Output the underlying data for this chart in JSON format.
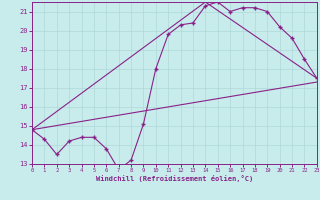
{
  "title": "",
  "xlabel": "Windchill (Refroidissement éolien,°C)",
  "ylabel": "",
  "bg_color": "#c8ecec",
  "grid_color": "#b0d8d8",
  "line_color": "#882288",
  "marker_color": "#882288",
  "xmin": 0,
  "xmax": 23,
  "ymin": 13,
  "ymax": 21.5,
  "yticks": [
    13,
    14,
    15,
    16,
    17,
    18,
    19,
    20,
    21
  ],
  "xticks": [
    0,
    1,
    2,
    3,
    4,
    5,
    6,
    7,
    8,
    9,
    10,
    11,
    12,
    13,
    14,
    15,
    16,
    17,
    18,
    19,
    20,
    21,
    22,
    23
  ],
  "line1_x": [
    0,
    1,
    2,
    3,
    4,
    5,
    6,
    7,
    8,
    9,
    10,
    11,
    12,
    13,
    14,
    15,
    16,
    17,
    18,
    19,
    20,
    21,
    22,
    23
  ],
  "line1_y": [
    14.8,
    14.3,
    13.5,
    14.2,
    14.4,
    14.4,
    13.8,
    12.7,
    13.2,
    15.1,
    18.0,
    19.8,
    20.3,
    20.4,
    21.3,
    21.5,
    21.0,
    21.2,
    21.2,
    21.0,
    20.2,
    19.6,
    18.5,
    17.5
  ],
  "line2_x": [
    0,
    23
  ],
  "line2_y": [
    14.8,
    17.3
  ],
  "line3_x": [
    0,
    14,
    23
  ],
  "line3_y": [
    14.8,
    21.5,
    17.5
  ]
}
